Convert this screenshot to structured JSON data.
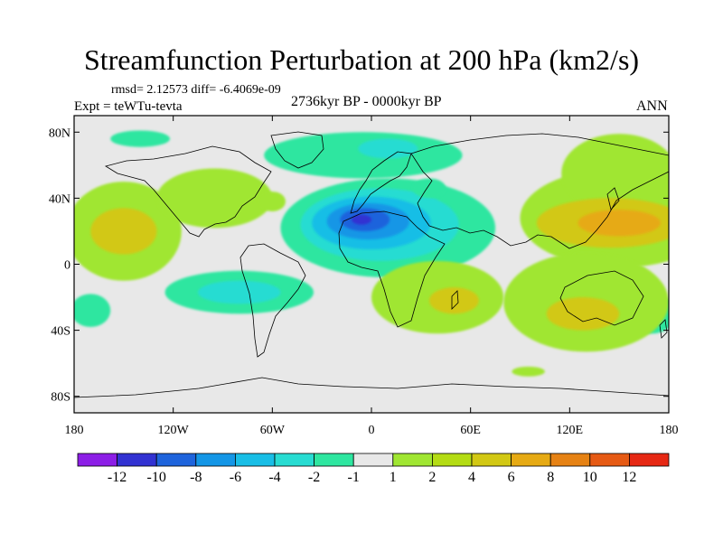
{
  "title": "Streamfunction Perturbation at 200 hPa (km2/s)",
  "stats": "rmsd= 2.12573  diff= -6.4069e-09",
  "experiment": "Expt = teWTu-tevta",
  "period": "2736kyr BP - 0000kyr BP",
  "season": "ANN",
  "lat_axis": [
    {
      "lat": 80,
      "label": "80N"
    },
    {
      "lat": 40,
      "label": "40N"
    },
    {
      "lat": 0,
      "label": "0"
    },
    {
      "lat": -40,
      "label": "40S"
    },
    {
      "lat": -80,
      "label": "80S"
    }
  ],
  "lon_axis": [
    {
      "lon": -180,
      "label": "180"
    },
    {
      "lon": -120,
      "label": "120W"
    },
    {
      "lon": -60,
      "label": "60W"
    },
    {
      "lon": 0,
      "label": "0"
    },
    {
      "lon": 60,
      "label": "60E"
    },
    {
      "lon": 120,
      "label": "120E"
    },
    {
      "lon": 180,
      "label": "180"
    }
  ],
  "colorbar": {
    "colors": [
      "#8c1ee6",
      "#3232d2",
      "#1e64dc",
      "#1496e6",
      "#19bee6",
      "#28dcd2",
      "#2ee6a0",
      "#e8e8e8",
      "#a0e632",
      "#b4dc14",
      "#d2c814",
      "#e6aa14",
      "#e68214",
      "#e65a14",
      "#e62814"
    ],
    "labels": [
      "-12",
      "-10",
      "-8",
      "-6",
      "-4",
      "-2",
      "-1",
      "1",
      "2",
      "4",
      "6",
      "8",
      "10",
      "12"
    ]
  },
  "blobs": [
    {
      "lon": 10,
      "lat": 22,
      "rx": 65,
      "ry": 30,
      "color": "#2ee6a0"
    },
    {
      "lon": 5,
      "lat": 24,
      "rx": 48,
      "ry": 22,
      "color": "#28dcd2"
    },
    {
      "lon": 0,
      "lat": 25,
      "rx": 36,
      "ry": 16,
      "color": "#19bee6"
    },
    {
      "lon": -2,
      "lat": 26,
      "rx": 25,
      "ry": 11,
      "color": "#1496e6"
    },
    {
      "lon": -4,
      "lat": 27,
      "rx": 15,
      "ry": 7,
      "color": "#1e64dc"
    },
    {
      "lon": -6,
      "lat": 27,
      "rx": 6,
      "ry": 3,
      "color": "#3232d2"
    },
    {
      "lon": -5,
      "lat": 66,
      "rx": 60,
      "ry": 14,
      "color": "#2ee6a0"
    },
    {
      "lon": 10,
      "lat": 70,
      "rx": 18,
      "ry": 6,
      "color": "#28dcd2"
    },
    {
      "lon": -140,
      "lat": 76,
      "rx": 18,
      "ry": 5,
      "color": "#2ee6a0"
    },
    {
      "lon": -80,
      "lat": -17,
      "rx": 45,
      "ry": 13,
      "color": "#2ee6a0"
    },
    {
      "lon": -80,
      "lat": -17,
      "rx": 25,
      "ry": 7,
      "color": "#28dcd2"
    },
    {
      "lon": -170,
      "lat": -28,
      "rx": 12,
      "ry": 10,
      "color": "#2ee6a0"
    },
    {
      "lon": 170,
      "lat": -30,
      "rx": 14,
      "ry": 12,
      "color": "#2ee6a0"
    },
    {
      "lon": 35,
      "lat": 46,
      "rx": 10,
      "ry": 6,
      "color": "#2ee6a0"
    },
    {
      "lon": -140,
      "lat": 12,
      "rx": 6,
      "ry": 2,
      "color": "#2ee6a0"
    },
    {
      "lon": 95,
      "lat": -65,
      "rx": 10,
      "ry": 3,
      "color": "#a0e632"
    },
    {
      "lon": 150,
      "lat": 28,
      "rx": 60,
      "ry": 30,
      "color": "#a0e632"
    },
    {
      "lon": 150,
      "lat": 55,
      "rx": 35,
      "ry": 24,
      "color": "#a0e632"
    },
    {
      "lon": 145,
      "lat": 25,
      "rx": 45,
      "ry": 15,
      "color": "#d2c814"
    },
    {
      "lon": 150,
      "lat": 25,
      "rx": 25,
      "ry": 8,
      "color": "#e6aa14"
    },
    {
      "lon": -150,
      "lat": 20,
      "rx": 35,
      "ry": 30,
      "color": "#a0e632"
    },
    {
      "lon": -150,
      "lat": 20,
      "rx": 20,
      "ry": 14,
      "color": "#d2c814"
    },
    {
      "lon": -95,
      "lat": 40,
      "rx": 35,
      "ry": 18,
      "color": "#a0e632"
    },
    {
      "lon": -60,
      "lat": 38,
      "rx": 8,
      "ry": 6,
      "color": "#a0e632"
    },
    {
      "lon": 40,
      "lat": -20,
      "rx": 40,
      "ry": 22,
      "color": "#a0e632"
    },
    {
      "lon": 50,
      "lat": -22,
      "rx": 15,
      "ry": 8,
      "color": "#d2c814"
    },
    {
      "lon": 130,
      "lat": -23,
      "rx": 50,
      "ry": 30,
      "color": "#a0e632"
    },
    {
      "lon": 128,
      "lat": -30,
      "rx": 22,
      "ry": 10,
      "color": "#d2c814"
    }
  ]
}
